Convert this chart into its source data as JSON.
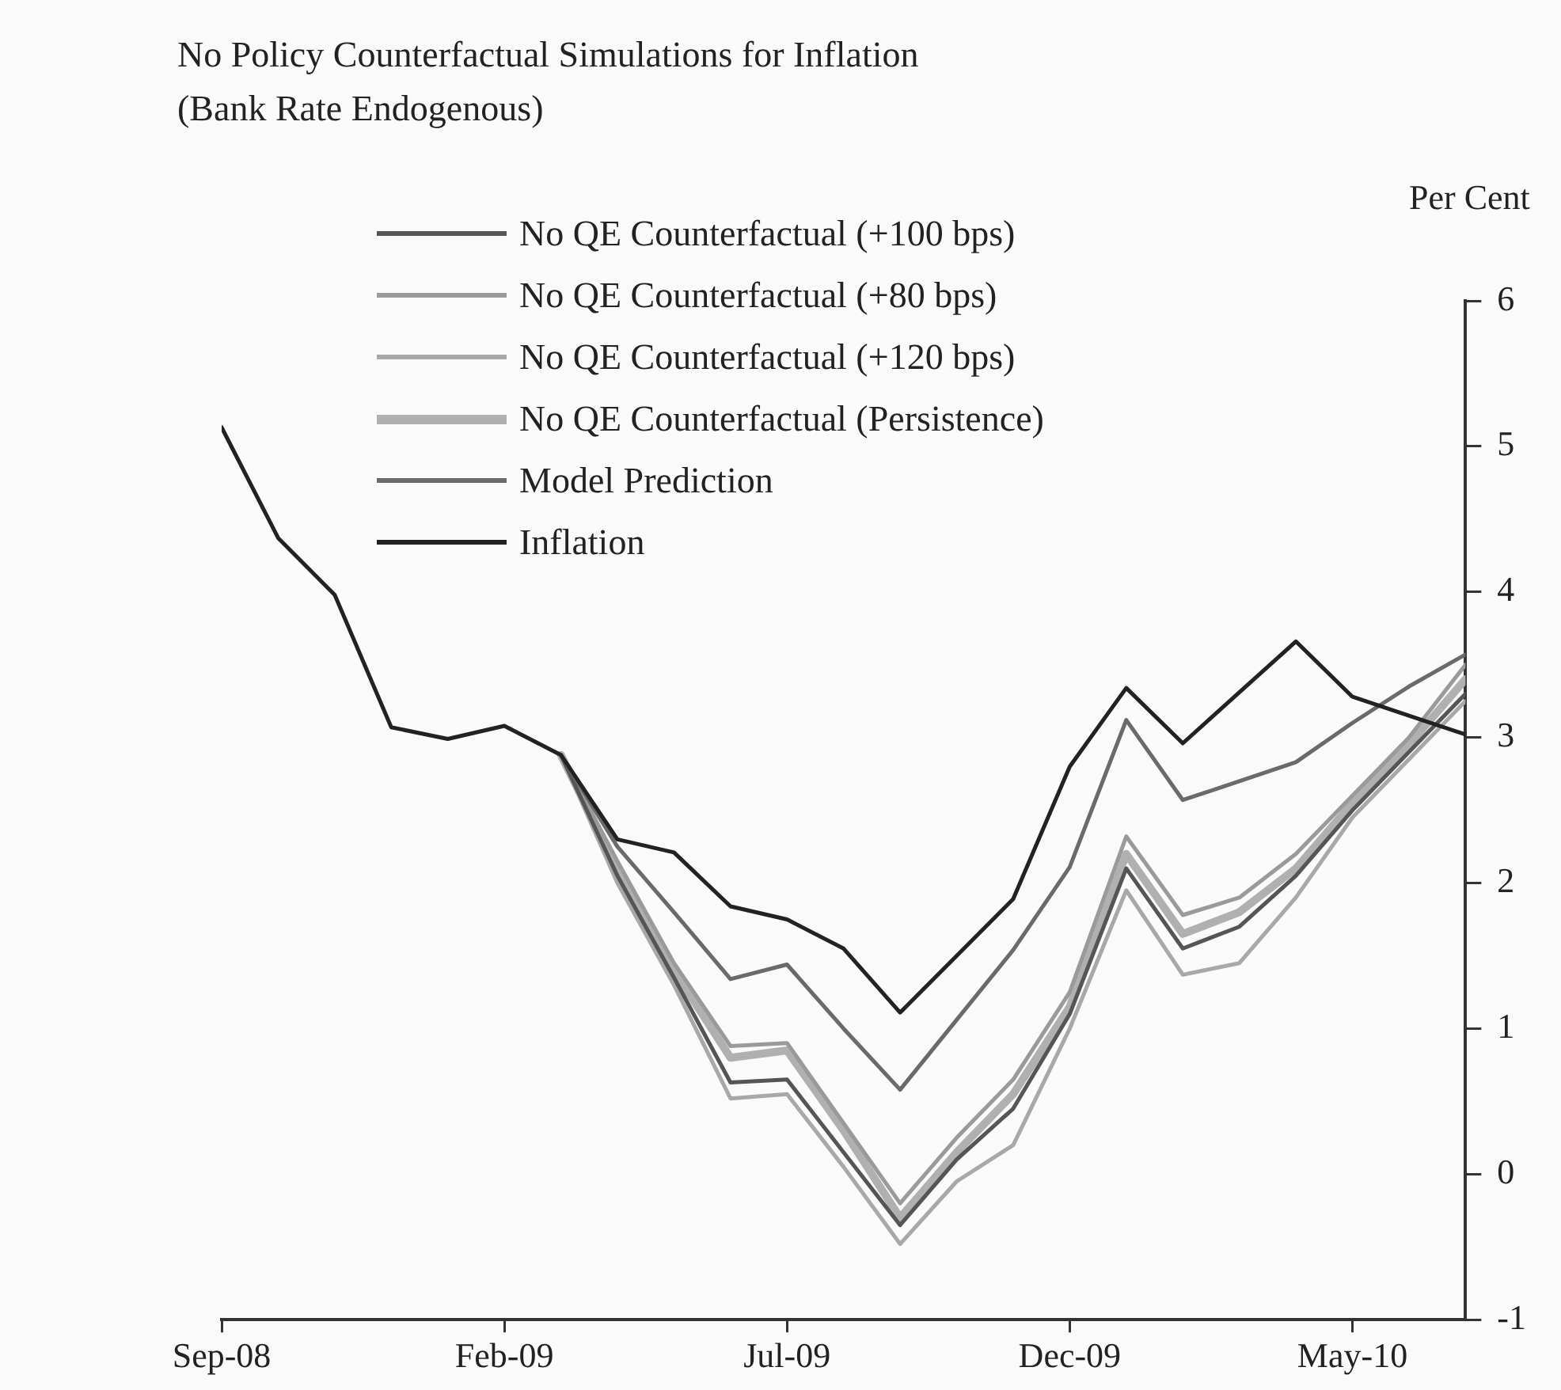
{
  "chart_data": {
    "type": "line",
    "title": "No Policy Counterfactual Simulations for Inflation",
    "subtitle": "(Bank Rate Endogenous)",
    "ylabel": "Per Cent",
    "x": [
      "2008-09",
      "2008-10",
      "2008-11",
      "2008-12",
      "2009-01",
      "2009-02",
      "2009-03",
      "2009-04",
      "2009-05",
      "2009-06",
      "2009-07",
      "2009-08",
      "2009-09",
      "2009-10",
      "2009-11",
      "2009-12",
      "2010-01",
      "2010-02",
      "2010-03",
      "2010-04",
      "2010-05",
      "2010-06",
      "2010-07"
    ],
    "xlim": [
      "2008-09",
      "2010-07"
    ],
    "xticks": [
      {
        "value": "2008-09",
        "label": "Sep-08"
      },
      {
        "value": "2009-02",
        "label": "Feb-09"
      },
      {
        "value": "2009-07",
        "label": "Jul-09"
      },
      {
        "value": "2009-12",
        "label": "Dec-09"
      },
      {
        "value": "2010-05",
        "label": "May-10"
      }
    ],
    "ylim": [
      -1,
      6
    ],
    "yticks": [
      -1,
      0,
      1,
      2,
      3,
      4,
      5,
      6
    ],
    "grid": false,
    "legend": "top left",
    "marker": "none",
    "line_style": "solid",
    "series": [
      {
        "name": "No QE Counterfactual (+100 bps)",
        "color": "#555555",
        "values": [
          null,
          null,
          null,
          null,
          null,
          null,
          2.88,
          2.05,
          1.35,
          0.63,
          0.65,
          0.15,
          -0.35,
          0.1,
          0.45,
          1.1,
          2.1,
          1.55,
          1.7,
          2.05,
          2.5,
          2.9,
          3.3
        ]
      },
      {
        "name": "No QE Counterfactual (+80 bps)",
        "color": "#9a9a9a",
        "values": [
          null,
          null,
          null,
          null,
          null,
          null,
          2.88,
          2.15,
          1.45,
          0.88,
          0.9,
          0.35,
          -0.2,
          0.25,
          0.65,
          1.25,
          2.32,
          1.78,
          1.9,
          2.2,
          2.6,
          3.0,
          3.5
        ]
      },
      {
        "name": "No QE Counterfactual (+120 bps)",
        "color": "#a8a8a8",
        "values": [
          null,
          null,
          null,
          null,
          null,
          null,
          2.88,
          2.0,
          1.3,
          0.52,
          0.55,
          0.05,
          -0.48,
          -0.05,
          0.2,
          1.0,
          1.95,
          1.37,
          1.45,
          1.9,
          2.45,
          2.85,
          3.25
        ]
      },
      {
        "name": "No QE Counterfactual (Persistence)",
        "color": "#b0b0b0",
        "values": [
          null,
          null,
          null,
          null,
          null,
          null,
          2.88,
          2.1,
          1.4,
          0.8,
          0.85,
          0.3,
          -0.3,
          0.15,
          0.55,
          1.15,
          2.2,
          1.65,
          1.8,
          2.1,
          2.55,
          2.95,
          3.4
        ]
      },
      {
        "name": "Model Prediction",
        "color": "#6a6a6a",
        "values": [
          null,
          null,
          null,
          null,
          null,
          null,
          2.88,
          2.25,
          1.8,
          1.34,
          1.44,
          1.0,
          0.58,
          1.06,
          1.54,
          2.11,
          3.12,
          2.57,
          2.7,
          2.83,
          3.1,
          3.35,
          3.57
        ]
      },
      {
        "name": "Inflation",
        "color": "#222222",
        "values": [
          5.13,
          4.37,
          3.98,
          3.07,
          2.99,
          3.08,
          2.88,
          2.3,
          2.21,
          1.84,
          1.75,
          1.55,
          1.11,
          1.5,
          1.89,
          2.8,
          3.34,
          2.96,
          3.31,
          3.66,
          3.28,
          3.15,
          3.02
        ]
      }
    ]
  }
}
